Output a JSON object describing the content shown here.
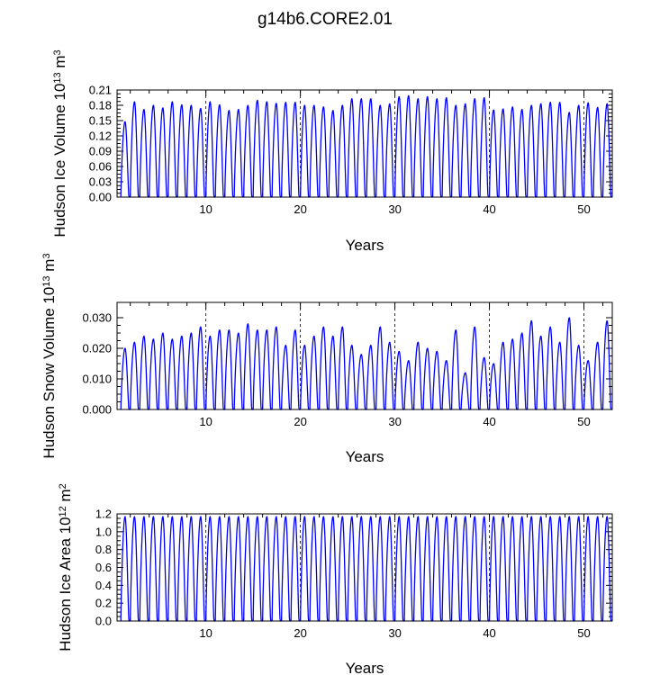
{
  "figure": {
    "title": "g14b6.CORE2.01"
  },
  "colors": {
    "line": "#0000ff",
    "axis": "#000000",
    "grid": "#000000"
  },
  "chart_data": [
    {
      "type": "line",
      "name": "ice-volume",
      "title": "",
      "xlabel": "Years",
      "ylabel": {
        "main": "Hudson Ice Volume 10",
        "exp": "13",
        "unit": " m",
        "unit_exp": "3"
      },
      "xlim": [
        0.6,
        53.0
      ],
      "ylim": [
        0,
        0.21
      ],
      "xticks": [
        "10",
        "20",
        "30",
        "40",
        "50"
      ],
      "yticks": [
        "0.00",
        "0.03",
        "0.06",
        "0.09",
        "0.12",
        "0.15",
        "0.18",
        "0.21"
      ],
      "x_start": 1.0,
      "peaks": [
        0.148,
        0.187,
        0.172,
        0.18,
        0.175,
        0.187,
        0.181,
        0.18,
        0.174,
        0.187,
        0.181,
        0.17,
        0.172,
        0.18,
        0.19,
        0.187,
        0.184,
        0.186,
        0.186,
        0.18,
        0.18,
        0.177,
        0.17,
        0.18,
        0.193,
        0.193,
        0.193,
        0.18,
        0.183,
        0.197,
        0.199,
        0.193,
        0.197,
        0.193,
        0.195,
        0.18,
        0.183,
        0.193,
        0.195,
        0.171,
        0.173,
        0.177,
        0.172,
        0.18,
        0.183,
        0.186,
        0.186,
        0.166,
        0.18,
        0.185,
        0.176,
        0.183
      ],
      "trough": 0.0
    },
    {
      "type": "line",
      "name": "snow-volume",
      "title": "",
      "xlabel": "Years",
      "ylabel": {
        "main": "Hudson Snow Volume 10",
        "exp": "13",
        "unit": " m",
        "unit_exp": "3"
      },
      "xlim": [
        0.6,
        53.0
      ],
      "ylim": [
        0,
        0.035
      ],
      "xticks": [
        "10",
        "20",
        "30",
        "40",
        "50"
      ],
      "yticks": [
        "0.000",
        "0.010",
        "0.020",
        "0.030"
      ],
      "x_start": 1.0,
      "peaks": [
        0.02,
        0.022,
        0.024,
        0.023,
        0.025,
        0.023,
        0.024,
        0.025,
        0.027,
        0.024,
        0.026,
        0.026,
        0.025,
        0.028,
        0.026,
        0.026,
        0.027,
        0.021,
        0.026,
        0.021,
        0.024,
        0.027,
        0.024,
        0.027,
        0.021,
        0.018,
        0.021,
        0.027,
        0.022,
        0.019,
        0.016,
        0.022,
        0.02,
        0.019,
        0.016,
        0.026,
        0.012,
        0.027,
        0.017,
        0.015,
        0.022,
        0.023,
        0.025,
        0.029,
        0.024,
        0.027,
        0.022,
        0.03,
        0.021,
        0.016,
        0.022,
        0.029
      ],
      "trough": 0.0
    },
    {
      "type": "line",
      "name": "ice-area",
      "title": "",
      "xlabel": "Years",
      "ylabel": {
        "main": "Hudson Ice Area 10",
        "exp": "12",
        "unit": " m",
        "unit_exp": "2"
      },
      "xlim": [
        0.6,
        53.0
      ],
      "ylim": [
        0,
        1.2
      ],
      "xticks": [
        "10",
        "20",
        "30",
        "40",
        "50"
      ],
      "yticks": [
        "0.0",
        "0.2",
        "0.4",
        "0.6",
        "0.8",
        "1.0",
        "1.2"
      ],
      "x_start": 1.0,
      "peaks": [
        1.17,
        1.17,
        1.17,
        1.17,
        1.17,
        1.17,
        1.17,
        1.17,
        1.17,
        1.17,
        1.17,
        1.17,
        1.17,
        1.17,
        1.17,
        1.17,
        1.17,
        1.17,
        1.17,
        1.17,
        1.17,
        1.17,
        1.17,
        1.17,
        1.17,
        1.17,
        1.17,
        1.17,
        1.17,
        1.17,
        1.17,
        1.17,
        1.17,
        1.17,
        1.17,
        1.17,
        1.17,
        1.17,
        1.17,
        1.17,
        1.17,
        1.17,
        1.17,
        1.17,
        1.17,
        1.17,
        1.17,
        1.17,
        1.17,
        1.17,
        1.17,
        1.17
      ],
      "trough": 0.0
    }
  ]
}
